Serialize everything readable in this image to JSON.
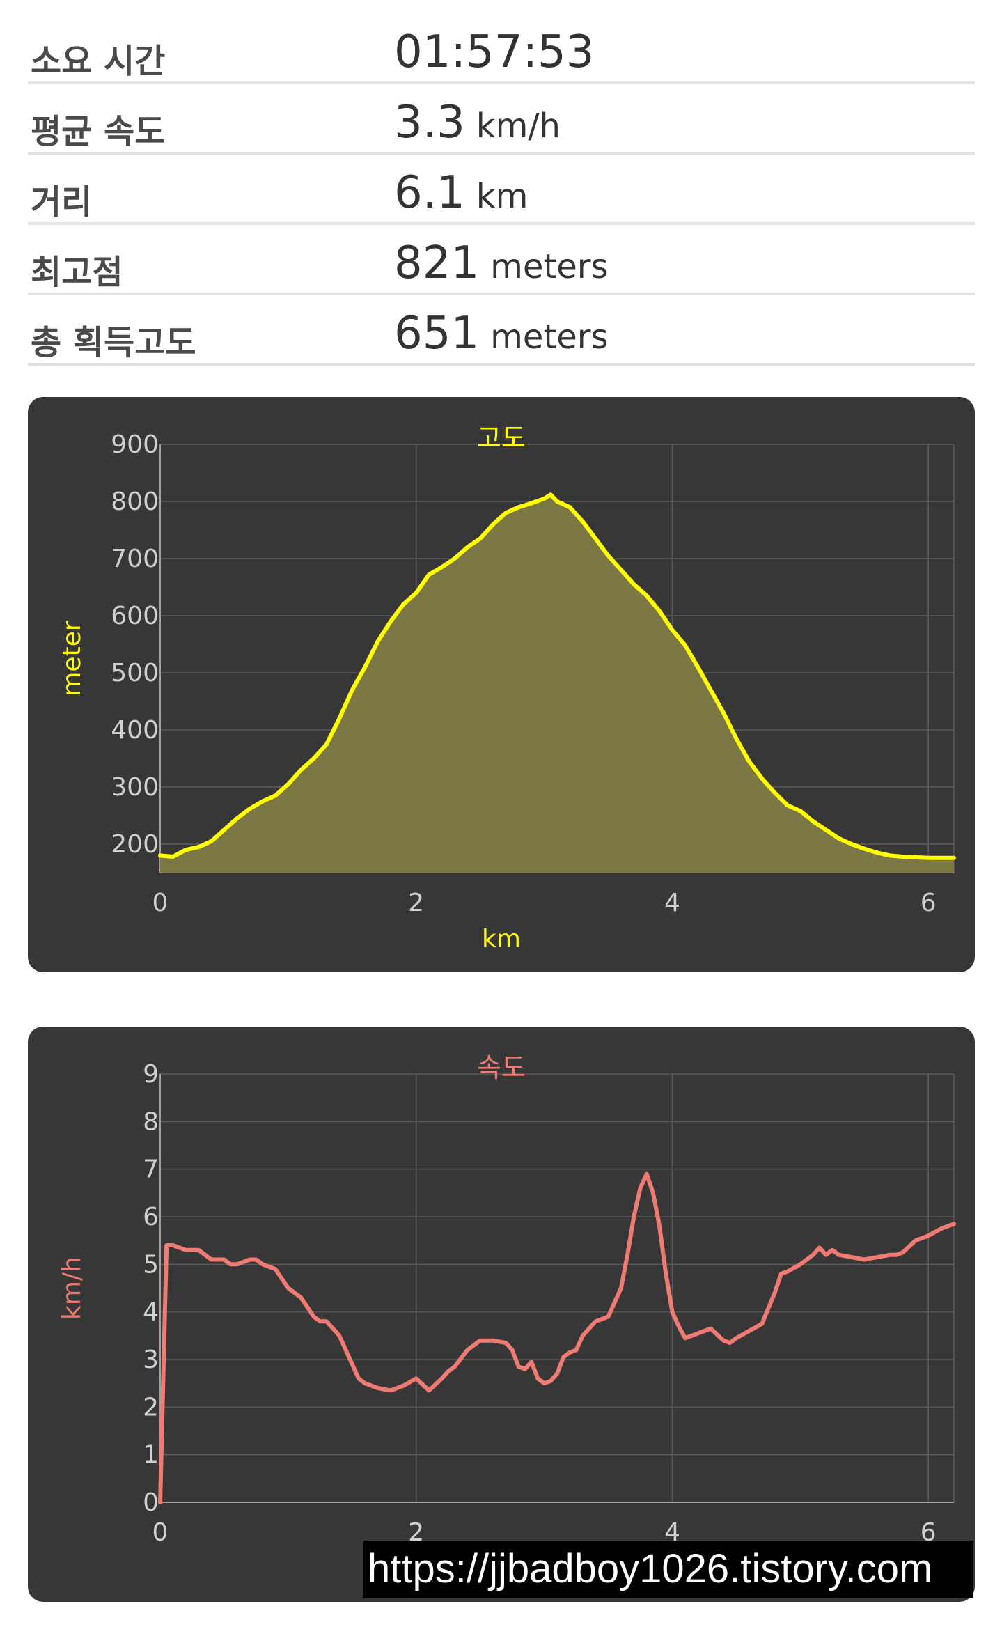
{
  "stats": [
    {
      "label": "소요 시간",
      "value": "01:57:53",
      "unit": ""
    },
    {
      "label": "평균 속도",
      "value": "3.3",
      "unit": "km/h"
    },
    {
      "label": "거리",
      "value": "6.1",
      "unit": "km"
    },
    {
      "label": "최고점",
      "value": "821",
      "unit": "meters"
    },
    {
      "label": "총 획득고도",
      "value": "651",
      "unit": "meters"
    }
  ],
  "watermark": "https://jjbadboy1026.tistory.com",
  "chart_data": [
    {
      "type": "area",
      "title": "고도",
      "xlabel": "km",
      "ylabel": "meter",
      "color": "#ffff00",
      "fill": "#7b7845",
      "xlim": [
        0,
        6.2
      ],
      "ylim": [
        150,
        900
      ],
      "xticks": [
        0,
        2,
        4,
        6
      ],
      "yticks": [
        200,
        300,
        400,
        500,
        600,
        700,
        800,
        900
      ],
      "x": [
        0,
        0.1,
        0.2,
        0.3,
        0.4,
        0.5,
        0.6,
        0.7,
        0.8,
        0.9,
        1.0,
        1.1,
        1.2,
        1.3,
        1.4,
        1.5,
        1.6,
        1.7,
        1.8,
        1.9,
        2.0,
        2.1,
        2.2,
        2.3,
        2.4,
        2.5,
        2.6,
        2.7,
        2.8,
        2.9,
        3.0,
        3.05,
        3.1,
        3.2,
        3.3,
        3.4,
        3.5,
        3.6,
        3.7,
        3.8,
        3.9,
        4.0,
        4.1,
        4.2,
        4.3,
        4.4,
        4.5,
        4.6,
        4.7,
        4.8,
        4.9,
        5.0,
        5.1,
        5.2,
        5.3,
        5.4,
        5.5,
        5.6,
        5.7,
        5.8,
        5.9,
        6.0,
        6.1,
        6.2
      ],
      "values": [
        180,
        178,
        190,
        195,
        205,
        225,
        245,
        262,
        275,
        285,
        305,
        330,
        350,
        375,
        420,
        470,
        510,
        555,
        590,
        620,
        640,
        672,
        685,
        700,
        720,
        735,
        760,
        780,
        790,
        797,
        805,
        812,
        800,
        790,
        765,
        735,
        705,
        680,
        655,
        635,
        608,
        575,
        548,
        510,
        470,
        430,
        385,
        345,
        315,
        290,
        268,
        258,
        240,
        225,
        210,
        200,
        192,
        185,
        180,
        178,
        177,
        176,
        176,
        176
      ]
    },
    {
      "type": "line",
      "title": "속도",
      "xlabel": "km",
      "ylabel": "km/h",
      "color": "#f07b73",
      "xlim": [
        0,
        6.2
      ],
      "ylim": [
        0,
        9
      ],
      "xticks": [
        0,
        2,
        4,
        6
      ],
      "yticks": [
        0,
        1,
        2,
        3,
        4,
        5,
        6,
        7,
        8,
        9
      ],
      "x": [
        0,
        0.05,
        0.1,
        0.2,
        0.3,
        0.35,
        0.4,
        0.5,
        0.55,
        0.6,
        0.7,
        0.75,
        0.8,
        0.9,
        1.0,
        1.05,
        1.1,
        1.2,
        1.25,
        1.3,
        1.4,
        1.45,
        1.5,
        1.55,
        1.6,
        1.7,
        1.8,
        1.9,
        2.0,
        2.1,
        2.2,
        2.25,
        2.3,
        2.4,
        2.5,
        2.6,
        2.7,
        2.75,
        2.8,
        2.85,
        2.9,
        2.95,
        3.0,
        3.05,
        3.1,
        3.15,
        3.2,
        3.25,
        3.3,
        3.4,
        3.45,
        3.5,
        3.6,
        3.65,
        3.7,
        3.75,
        3.8,
        3.85,
        3.9,
        3.95,
        4.0,
        4.05,
        4.1,
        4.2,
        4.3,
        4.4,
        4.45,
        4.5,
        4.6,
        4.7,
        4.8,
        4.85,
        4.9,
        5.0,
        5.05,
        5.1,
        5.15,
        5.2,
        5.25,
        5.3,
        5.4,
        5.5,
        5.6,
        5.7,
        5.75,
        5.8,
        5.9,
        6.0,
        6.1,
        6.2
      ],
      "values": [
        0,
        5.4,
        5.4,
        5.3,
        5.3,
        5.2,
        5.1,
        5.1,
        5.0,
        5.0,
        5.1,
        5.1,
        5.0,
        4.9,
        4.5,
        4.4,
        4.3,
        3.9,
        3.8,
        3.8,
        3.5,
        3.2,
        2.9,
        2.6,
        2.5,
        2.4,
        2.35,
        2.45,
        2.6,
        2.35,
        2.6,
        2.75,
        2.85,
        3.2,
        3.4,
        3.4,
        3.35,
        3.2,
        2.85,
        2.8,
        2.95,
        2.6,
        2.5,
        2.55,
        2.7,
        3.05,
        3.15,
        3.2,
        3.5,
        3.8,
        3.85,
        3.9,
        4.5,
        5.2,
        6.0,
        6.6,
        6.9,
        6.5,
        5.8,
        4.8,
        4.0,
        3.7,
        3.45,
        3.55,
        3.65,
        3.4,
        3.35,
        3.45,
        3.6,
        3.75,
        4.4,
        4.8,
        4.85,
        5.0,
        5.1,
        5.2,
        5.35,
        5.2,
        5.3,
        5.2,
        5.15,
        5.1,
        5.15,
        5.2,
        5.2,
        5.25,
        5.5,
        5.6,
        5.75,
        5.85
      ]
    }
  ]
}
